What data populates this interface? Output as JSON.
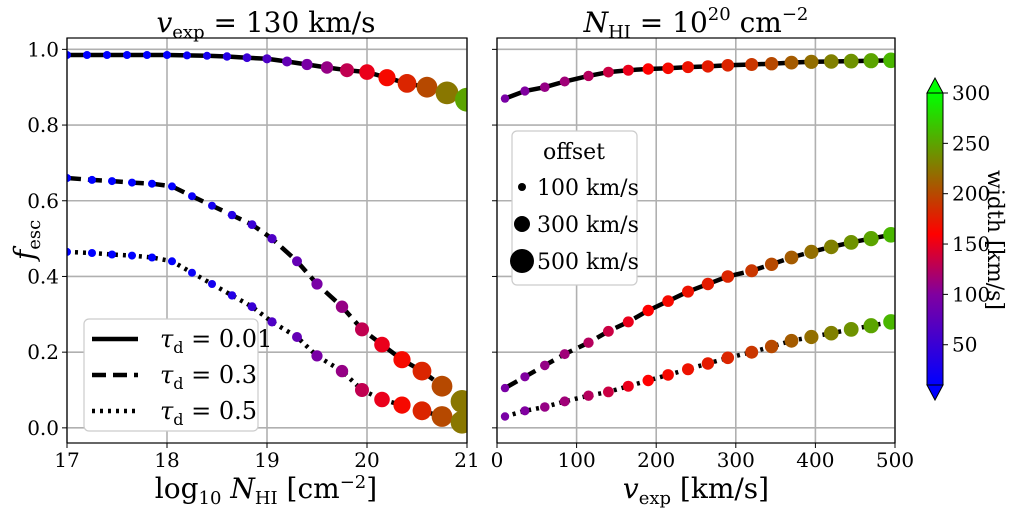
{
  "figure": {
    "colorbar": {
      "label": "width [km/s]",
      "range": [
        10,
        300
      ],
      "ticks": [
        50,
        100,
        150,
        200,
        250,
        300
      ],
      "stops": [
        {
          "v": 10,
          "color": "#0000ff"
        },
        {
          "v": 100,
          "color": "#8000a0"
        },
        {
          "v": 160,
          "color": "#ff0000"
        },
        {
          "v": 230,
          "color": "#808000"
        },
        {
          "v": 300,
          "color": "#00ff00"
        }
      ]
    },
    "marker_legend": {
      "title": "offset",
      "entries": [
        "100 km/s",
        "300 km/s",
        "500 km/s"
      ],
      "offsets": [
        100,
        300,
        500
      ]
    }
  },
  "chart_data": [
    {
      "type": "scatter",
      "title": "v_exp = 130 km/s",
      "xlabel": "log10 N_HI [cm^-2]",
      "ylabel": "f_esc",
      "xlim": [
        17,
        21
      ],
      "ylim": [
        -0.04,
        1.03
      ],
      "xticks": [
        17,
        18,
        19,
        20,
        21
      ],
      "yticks": [
        0.0,
        0.2,
        0.4,
        0.6,
        0.8,
        1.0
      ],
      "ytick_labels": [
        "0.0",
        "0.2",
        "0.4",
        "0.6",
        "0.8",
        "1.0"
      ],
      "grid": true,
      "legend": {
        "position": "lower-left",
        "entries": [
          "τd = 0.01",
          "τd = 0.3",
          "τd = 0.5"
        ]
      },
      "series": [
        {
          "name": "τd = 0.01",
          "line": "solid",
          "x": [
            17.0,
            17.2,
            17.4,
            17.6,
            17.8,
            18.0,
            18.2,
            18.4,
            18.6,
            18.8,
            19.0,
            19.2,
            19.4,
            19.6,
            19.8,
            20.0,
            20.2,
            20.4,
            20.6,
            20.8,
            21.0
          ],
          "y": [
            0.985,
            0.985,
            0.985,
            0.985,
            0.985,
            0.985,
            0.984,
            0.983,
            0.981,
            0.978,
            0.975,
            0.968,
            0.96,
            0.952,
            0.945,
            0.94,
            0.925,
            0.91,
            0.9,
            0.885,
            0.867
          ]
        },
        {
          "name": "τd = 0.3",
          "line": "dashed",
          "x": [
            17.0,
            17.25,
            17.45,
            17.65,
            17.85,
            18.05,
            18.25,
            18.45,
            18.65,
            18.85,
            19.05,
            19.3,
            19.5,
            19.75,
            19.95,
            20.15,
            20.35,
            20.55,
            20.75,
            20.95
          ],
          "y": [
            0.66,
            0.655,
            0.652,
            0.648,
            0.645,
            0.638,
            0.612,
            0.587,
            0.562,
            0.537,
            0.5,
            0.44,
            0.38,
            0.32,
            0.26,
            0.22,
            0.18,
            0.15,
            0.11,
            0.07
          ]
        },
        {
          "name": "τd = 0.5",
          "line": "dotted",
          "x": [
            17.0,
            17.25,
            17.45,
            17.65,
            17.85,
            18.05,
            18.25,
            18.45,
            18.65,
            18.85,
            19.05,
            19.3,
            19.5,
            19.75,
            19.95,
            20.15,
            20.35,
            20.55,
            20.75,
            20.95
          ],
          "y": [
            0.465,
            0.462,
            0.458,
            0.455,
            0.45,
            0.44,
            0.41,
            0.38,
            0.35,
            0.32,
            0.28,
            0.24,
            0.19,
            0.15,
            0.1,
            0.075,
            0.06,
            0.045,
            0.03,
            0.015
          ]
        }
      ],
      "marker_size_offset": [
        100,
        100,
        100,
        100,
        100,
        100,
        100,
        100,
        110,
        120,
        130,
        150,
        180,
        210,
        250,
        290,
        330,
        370,
        420,
        470,
        500
      ],
      "marker_width": [
        10,
        10,
        10,
        10,
        10,
        12,
        18,
        25,
        35,
        50,
        65,
        80,
        95,
        110,
        130,
        150,
        165,
        180,
        200,
        225,
        250
      ]
    },
    {
      "type": "scatter",
      "title": "N_HI = 10^20 cm^-2",
      "xlabel": "v_exp [km/s]",
      "ylabel": "",
      "xlim": [
        0,
        500
      ],
      "ylim": [
        -0.04,
        1.03
      ],
      "xticks": [
        0,
        100,
        200,
        300,
        400,
        500
      ],
      "yticks": [
        0.0,
        0.2,
        0.4,
        0.6,
        0.8,
        1.0
      ],
      "grid": true,
      "series": [
        {
          "name": "τd = 0.01",
          "line": "solid",
          "x": [
            10,
            35,
            60,
            85,
            115,
            140,
            165,
            190,
            215,
            240,
            265,
            290,
            320,
            345,
            370,
            395,
            420,
            445,
            470,
            495
          ],
          "y": [
            0.87,
            0.89,
            0.9,
            0.915,
            0.93,
            0.94,
            0.945,
            0.948,
            0.95,
            0.953,
            0.955,
            0.958,
            0.96,
            0.962,
            0.965,
            0.967,
            0.968,
            0.969,
            0.97,
            0.971
          ]
        },
        {
          "name": "τd = 0.3",
          "line": "dashed",
          "x": [
            10,
            35,
            60,
            85,
            115,
            140,
            165,
            190,
            215,
            240,
            265,
            290,
            320,
            345,
            370,
            395,
            420,
            445,
            470,
            495
          ],
          "y": [
            0.105,
            0.135,
            0.165,
            0.195,
            0.225,
            0.255,
            0.28,
            0.31,
            0.335,
            0.36,
            0.38,
            0.4,
            0.415,
            0.432,
            0.45,
            0.465,
            0.478,
            0.49,
            0.5,
            0.51
          ]
        },
        {
          "name": "τd = 0.5",
          "line": "dotted",
          "x": [
            10,
            35,
            60,
            85,
            115,
            140,
            165,
            190,
            215,
            240,
            265,
            290,
            320,
            345,
            370,
            395,
            420,
            445,
            470,
            495
          ],
          "y": [
            0.03,
            0.045,
            0.055,
            0.07,
            0.085,
            0.095,
            0.11,
            0.125,
            0.14,
            0.155,
            0.17,
            0.185,
            0.2,
            0.215,
            0.23,
            0.24,
            0.25,
            0.26,
            0.27,
            0.28
          ]
        }
      ],
      "marker_size_offset": [
        110,
        130,
        140,
        150,
        160,
        170,
        175,
        185,
        190,
        200,
        210,
        215,
        225,
        235,
        245,
        255,
        265,
        270,
        280,
        290
      ],
      "marker_width": [
        95,
        100,
        110,
        115,
        125,
        135,
        150,
        160,
        165,
        170,
        175,
        180,
        190,
        200,
        210,
        220,
        230,
        240,
        250,
        260
      ]
    }
  ]
}
